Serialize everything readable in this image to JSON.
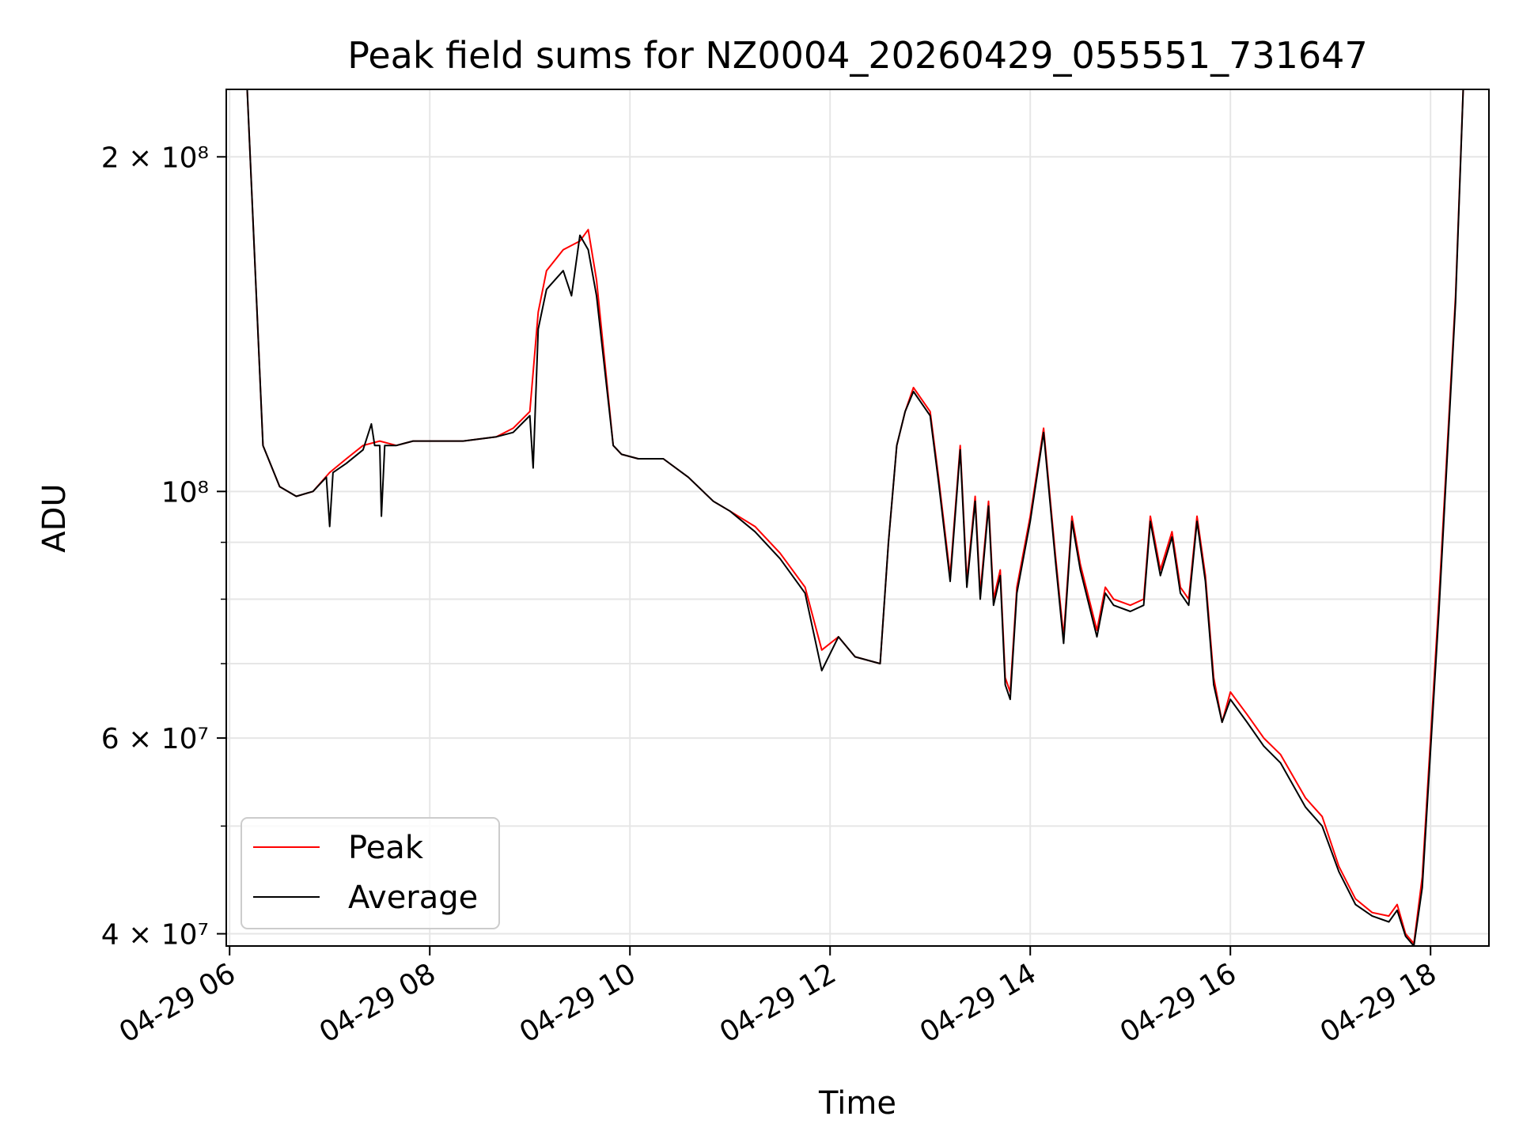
{
  "chart_data": {
    "type": "line",
    "title": "Peak field sums for NZ0004_20260429_055551_731647",
    "xlabel": "Time",
    "ylabel": "ADU",
    "yscale": "log",
    "ylim": [
      39000000,
      230000000
    ],
    "xlim": [
      "2026-04-29 05:58",
      "2026-04-29 18:35"
    ],
    "x_ticks": [
      {
        "value": "2026-04-29 06:00",
        "label": "04-29 06"
      },
      {
        "value": "2026-04-29 08:00",
        "label": "04-29 08"
      },
      {
        "value": "2026-04-29 10:00",
        "label": "04-29 10"
      },
      {
        "value": "2026-04-29 12:00",
        "label": "04-29 12"
      },
      {
        "value": "2026-04-29 14:00",
        "label": "04-29 14"
      },
      {
        "value": "2026-04-29 16:00",
        "label": "04-29 16"
      },
      {
        "value": "2026-04-29 18:00",
        "label": "04-29 18"
      }
    ],
    "y_ticks": [
      {
        "value": 40000000,
        "label": "4 × 10⁷"
      },
      {
        "value": 60000000,
        "label": "6 × 10⁷"
      },
      {
        "value": 100000000,
        "label": "10⁸"
      },
      {
        "value": 200000000,
        "label": "2 × 10⁸"
      }
    ],
    "y_minor_ticks": [
      50000000,
      70000000,
      80000000,
      90000000
    ],
    "grid": true,
    "legend_position": "lower-left",
    "series": [
      {
        "name": "Peak",
        "color": "#ff0000",
        "x": [
          "2026-04-29 05:58",
          "2026-04-29 06:10",
          "2026-04-29 06:20",
          "2026-04-29 06:30",
          "2026-04-29 06:40",
          "2026-04-29 06:50",
          "2026-04-29 07:00",
          "2026-04-29 07:10",
          "2026-04-29 07:20",
          "2026-04-29 07:30",
          "2026-04-29 07:40",
          "2026-04-29 07:50",
          "2026-04-29 08:00",
          "2026-04-29 08:20",
          "2026-04-29 08:40",
          "2026-04-29 08:50",
          "2026-04-29 09:00",
          "2026-04-29 09:05",
          "2026-04-29 09:10",
          "2026-04-29 09:20",
          "2026-04-29 09:30",
          "2026-04-29 09:35",
          "2026-04-29 09:40",
          "2026-04-29 09:50",
          "2026-04-29 09:55",
          "2026-04-29 10:05",
          "2026-04-29 10:20",
          "2026-04-29 10:35",
          "2026-04-29 10:50",
          "2026-04-29 11:00",
          "2026-04-29 11:15",
          "2026-04-29 11:30",
          "2026-04-29 11:45",
          "2026-04-29 11:55",
          "2026-04-29 12:05",
          "2026-04-29 12:15",
          "2026-04-29 12:30",
          "2026-04-29 12:35",
          "2026-04-29 12:40",
          "2026-04-29 12:45",
          "2026-04-29 12:50",
          "2026-04-29 13:00",
          "2026-04-29 13:05",
          "2026-04-29 13:12",
          "2026-04-29 13:18",
          "2026-04-29 13:22",
          "2026-04-29 13:27",
          "2026-04-29 13:30",
          "2026-04-29 13:35",
          "2026-04-29 13:38",
          "2026-04-29 13:42",
          "2026-04-29 13:45",
          "2026-04-29 13:48",
          "2026-04-29 13:52",
          "2026-04-29 14:00",
          "2026-04-29 14:08",
          "2026-04-29 14:15",
          "2026-04-29 14:20",
          "2026-04-29 14:25",
          "2026-04-29 14:30",
          "2026-04-29 14:40",
          "2026-04-29 14:45",
          "2026-04-29 14:50",
          "2026-04-29 15:00",
          "2026-04-29 15:08",
          "2026-04-29 15:12",
          "2026-04-29 15:18",
          "2026-04-29 15:25",
          "2026-04-29 15:30",
          "2026-04-29 15:35",
          "2026-04-29 15:40",
          "2026-04-29 15:45",
          "2026-04-29 15:50",
          "2026-04-29 15:55",
          "2026-04-29 16:00",
          "2026-04-29 16:10",
          "2026-04-29 16:20",
          "2026-04-29 16:30",
          "2026-04-29 16:45",
          "2026-04-29 16:55",
          "2026-04-29 17:05",
          "2026-04-29 17:15",
          "2026-04-29 17:25",
          "2026-04-29 17:35",
          "2026-04-29 17:40",
          "2026-04-29 17:45",
          "2026-04-29 17:50",
          "2026-04-29 17:55",
          "2026-04-29 18:05",
          "2026-04-29 18:15",
          "2026-04-29 18:20",
          "2026-04-29 18:35"
        ],
        "values": [
          240000000,
          240000000,
          110000000,
          101000000,
          99000000,
          100000000,
          104000000,
          107000000,
          110000000,
          111000000,
          110000000,
          111000000,
          111000000,
          111000000,
          112000000,
          114000000,
          118000000,
          145000000,
          158000000,
          165000000,
          168000000,
          172000000,
          155000000,
          110000000,
          108000000,
          107000000,
          107000000,
          103000000,
          98000000,
          96000000,
          93000000,
          88000000,
          82000000,
          72000000,
          74000000,
          71000000,
          70000000,
          90000000,
          110000000,
          118000000,
          124000000,
          118000000,
          103000000,
          84000000,
          110000000,
          83000000,
          99000000,
          81000000,
          98000000,
          80000000,
          85000000,
          68000000,
          66000000,
          82000000,
          95000000,
          114000000,
          88000000,
          74000000,
          95000000,
          86000000,
          75000000,
          82000000,
          80000000,
          79000000,
          80000000,
          95000000,
          85000000,
          92000000,
          82000000,
          80000000,
          95000000,
          84000000,
          68000000,
          62000000,
          66000000,
          63000000,
          60000000,
          58000000,
          53000000,
          51000000,
          46000000,
          43000000,
          41800000,
          41500000,
          42500000,
          40000000,
          39200000,
          45000000,
          80000000,
          150000000,
          240000000,
          240000000
        ]
      },
      {
        "name": "Average",
        "color": "#000000",
        "x": [
          "2026-04-29 05:58",
          "2026-04-29 06:10",
          "2026-04-29 06:20",
          "2026-04-29 06:30",
          "2026-04-29 06:40",
          "2026-04-29 06:50",
          "2026-04-29 06:58",
          "2026-04-29 07:00",
          "2026-04-29 07:02",
          "2026-04-29 07:10",
          "2026-04-29 07:20",
          "2026-04-29 07:25",
          "2026-04-29 07:27",
          "2026-04-29 07:30",
          "2026-04-29 07:31",
          "2026-04-29 07:33",
          "2026-04-29 07:40",
          "2026-04-29 07:50",
          "2026-04-29 08:00",
          "2026-04-29 08:20",
          "2026-04-29 08:40",
          "2026-04-29 08:50",
          "2026-04-29 09:00",
          "2026-04-29 09:02",
          "2026-04-29 09:05",
          "2026-04-29 09:10",
          "2026-04-29 09:20",
          "2026-04-29 09:25",
          "2026-04-29 09:30",
          "2026-04-29 09:35",
          "2026-04-29 09:40",
          "2026-04-29 09:50",
          "2026-04-29 09:55",
          "2026-04-29 10:05",
          "2026-04-29 10:20",
          "2026-04-29 10:35",
          "2026-04-29 10:50",
          "2026-04-29 11:00",
          "2026-04-29 11:15",
          "2026-04-29 11:30",
          "2026-04-29 11:45",
          "2026-04-29 11:55",
          "2026-04-29 12:05",
          "2026-04-29 12:15",
          "2026-04-29 12:30",
          "2026-04-29 12:35",
          "2026-04-29 12:40",
          "2026-04-29 12:45",
          "2026-04-29 12:50",
          "2026-04-29 13:00",
          "2026-04-29 13:05",
          "2026-04-29 13:12",
          "2026-04-29 13:18",
          "2026-04-29 13:22",
          "2026-04-29 13:27",
          "2026-04-29 13:30",
          "2026-04-29 13:35",
          "2026-04-29 13:38",
          "2026-04-29 13:42",
          "2026-04-29 13:45",
          "2026-04-29 13:48",
          "2026-04-29 13:52",
          "2026-04-29 14:00",
          "2026-04-29 14:08",
          "2026-04-29 14:15",
          "2026-04-29 14:20",
          "2026-04-29 14:25",
          "2026-04-29 14:30",
          "2026-04-29 14:40",
          "2026-04-29 14:45",
          "2026-04-29 14:50",
          "2026-04-29 15:00",
          "2026-04-29 15:08",
          "2026-04-29 15:12",
          "2026-04-29 15:18",
          "2026-04-29 15:25",
          "2026-04-29 15:30",
          "2026-04-29 15:35",
          "2026-04-29 15:40",
          "2026-04-29 15:45",
          "2026-04-29 15:50",
          "2026-04-29 15:55",
          "2026-04-29 16:00",
          "2026-04-29 16:10",
          "2026-04-29 16:20",
          "2026-04-29 16:30",
          "2026-04-29 16:45",
          "2026-04-29 16:55",
          "2026-04-29 17:05",
          "2026-04-29 17:15",
          "2026-04-29 17:25",
          "2026-04-29 17:35",
          "2026-04-29 17:40",
          "2026-04-29 17:45",
          "2026-04-29 17:50",
          "2026-04-29 17:55",
          "2026-04-29 18:05",
          "2026-04-29 18:15",
          "2026-04-29 18:20",
          "2026-04-29 18:35"
        ],
        "values": [
          240000000,
          240000000,
          110000000,
          101000000,
          99000000,
          100000000,
          103000000,
          93000000,
          104000000,
          106000000,
          109000000,
          115000000,
          110000000,
          110000000,
          95000000,
          110000000,
          110000000,
          111000000,
          111000000,
          111000000,
          112000000,
          113000000,
          117000000,
          105000000,
          140000000,
          152000000,
          158000000,
          150000000,
          170000000,
          165000000,
          150000000,
          110000000,
          108000000,
          107000000,
          107000000,
          103000000,
          98000000,
          96000000,
          92000000,
          87000000,
          81000000,
          69000000,
          74000000,
          71000000,
          70000000,
          90000000,
          110000000,
          118000000,
          123000000,
          117000000,
          102000000,
          83000000,
          109000000,
          82000000,
          98000000,
          80000000,
          97000000,
          79000000,
          84000000,
          67000000,
          65000000,
          81000000,
          94000000,
          113000000,
          87000000,
          73000000,
          94000000,
          85000000,
          74000000,
          81000000,
          79000000,
          78000000,
          79000000,
          94000000,
          84000000,
          91000000,
          81000000,
          79000000,
          94000000,
          83000000,
          67000000,
          62000000,
          65000000,
          62000000,
          59000000,
          57000000,
          52000000,
          50000000,
          45500000,
          42500000,
          41500000,
          41000000,
          42000000,
          39800000,
          39000000,
          44000000,
          78000000,
          148000000,
          240000000,
          240000000
        ]
      }
    ]
  }
}
